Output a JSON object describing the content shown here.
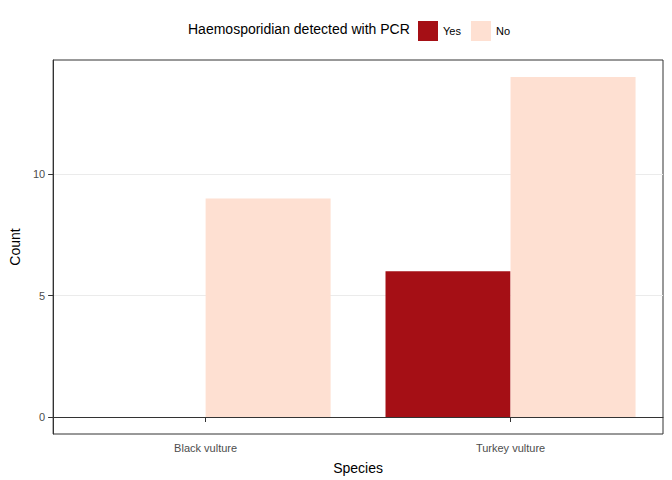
{
  "chart_data": {
    "type": "bar",
    "legend_title": "Haemosporidian detected with PCR",
    "x_label": "Species",
    "y_label": "Count",
    "categories": [
      "Black vulture",
      "Turkey vulture"
    ],
    "series": [
      {
        "name": "Yes",
        "color": "#a50f15",
        "values": [
          0,
          6
        ]
      },
      {
        "name": "No",
        "color": "#fee0d2",
        "values": [
          9,
          14
        ]
      }
    ],
    "ylim": [
      -0.7,
      14.7
    ],
    "yticks": [
      0,
      5,
      10
    ],
    "grid": true,
    "legend": "top"
  }
}
